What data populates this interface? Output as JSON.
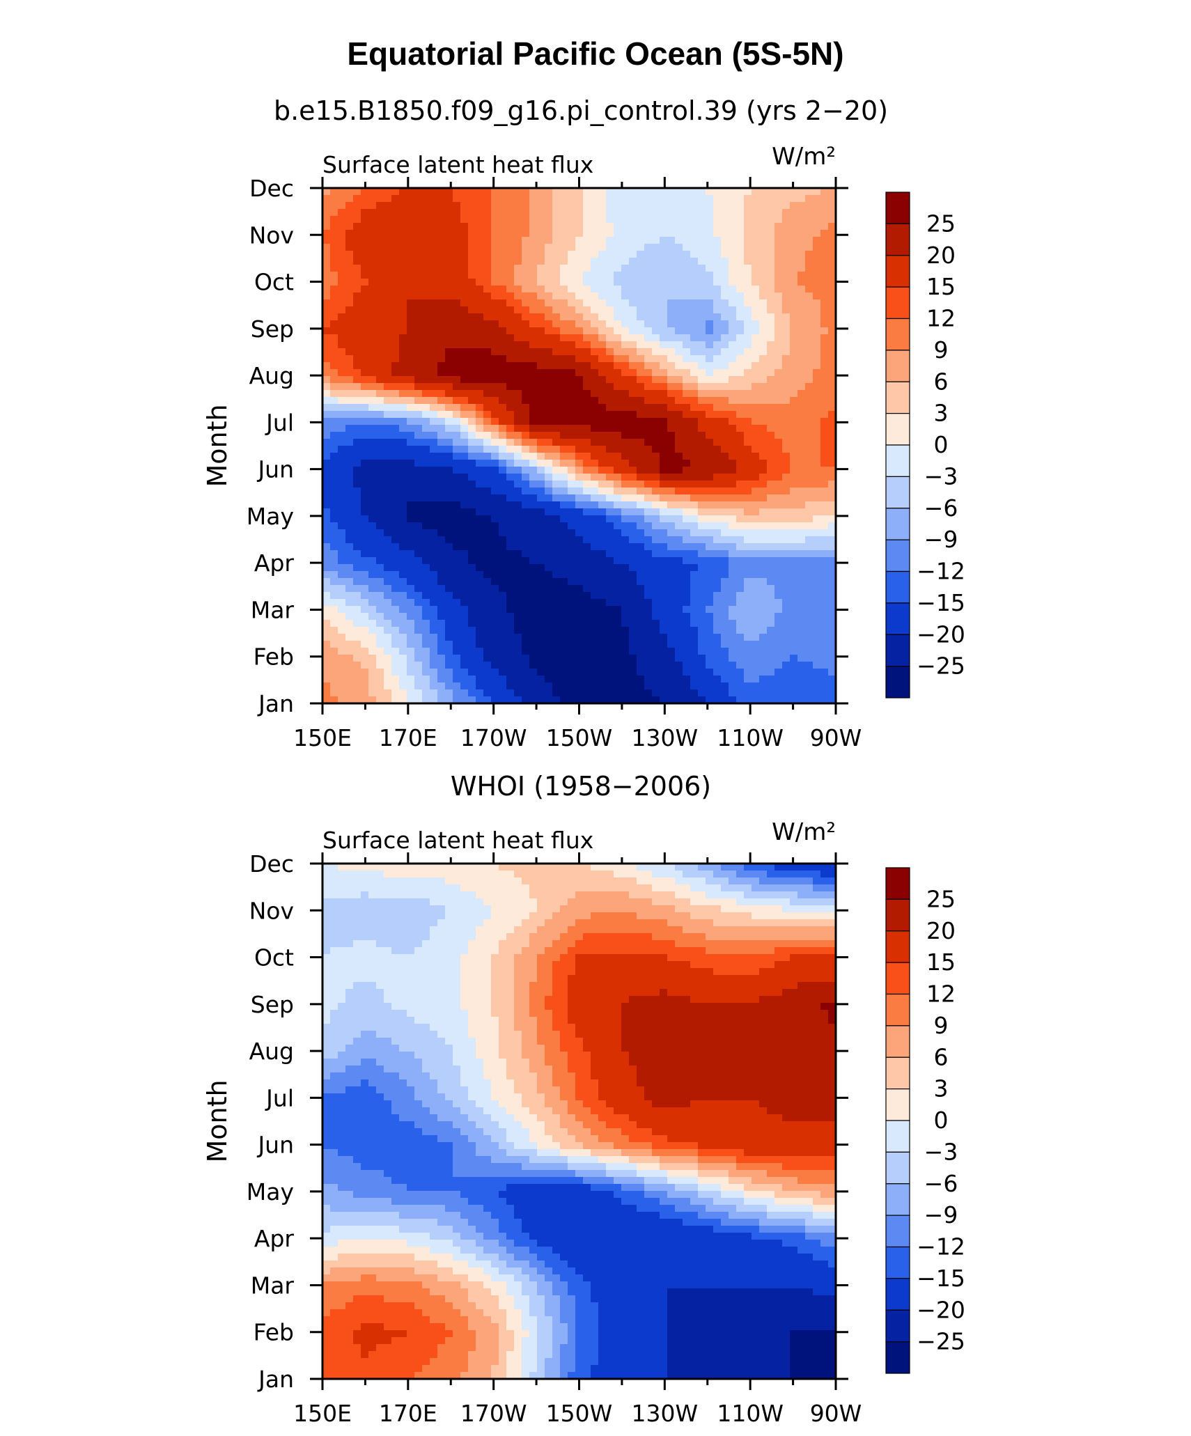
{
  "title": "Equatorial Pacific Ocean (5S-5N)",
  "colorbar": {
    "levels": [
      "25",
      "20",
      "15",
      "12",
      "9",
      "6",
      "3",
      "0",
      "−3",
      "−6",
      "−9",
      "−12",
      "−15",
      "−20",
      "−25"
    ],
    "colors": [
      "#8b0000",
      "#b31b00",
      "#d83000",
      "#f85018",
      "#fb7c43",
      "#fca47a",
      "#fdc7a8",
      "#feeadb",
      "#d9e9fd",
      "#b6cefb",
      "#8daef8",
      "#5c8af2",
      "#2a61ea",
      "#0b3acc",
      "#0522a3",
      "#00137d"
    ]
  },
  "chart_data": [
    {
      "type": "heatmap",
      "subtitle": "b.e15.B1850.f09_g16.pi_control.39 (yrs 2−20)",
      "left_label": "Surface latent heat flux",
      "units_label": "W/m²",
      "ylabel": "Month",
      "x_ticks": [
        "150E",
        "170E",
        "170W",
        "150W",
        "130W",
        "110W",
        "90W"
      ],
      "y_ticks": [
        "Jan",
        "Feb",
        "Mar",
        "Apr",
        "May",
        "Jun",
        "Jul",
        "Aug",
        "Sep",
        "Oct",
        "Nov",
        "Dec"
      ],
      "x_lon": [
        150,
        160,
        170,
        180,
        190,
        200,
        210,
        220,
        230,
        240,
        250,
        260,
        270
      ],
      "months": [
        "Jan",
        "Feb",
        "Mar",
        "Apr",
        "May",
        "Jun",
        "Jul",
        "Aug",
        "Sep",
        "Oct",
        "Nov",
        "Dec"
      ],
      "z": [
        [
          10,
          8,
          0,
          -8,
          -15,
          -23,
          -27,
          -27,
          -25,
          -20,
          -13,
          -15,
          -13
        ],
        [
          8,
          5,
          -4,
          -14,
          -22,
          -26,
          -27,
          -26,
          -22,
          -14,
          -10,
          -12,
          -11
        ],
        [
          2,
          -4,
          -10,
          -18,
          -24,
          -27,
          -27,
          -25,
          -18,
          -12,
          -6,
          -10,
          -12
        ],
        [
          -10,
          -14,
          -18,
          -24,
          -26,
          -25,
          -23,
          -20,
          -16,
          -15,
          -10,
          -10,
          -10
        ],
        [
          -14,
          -20,
          -26,
          -27,
          -25,
          -22,
          -18,
          -12,
          -5,
          2,
          5,
          5,
          2
        ],
        [
          -16,
          -22,
          -22,
          -20,
          -16,
          -5,
          8,
          18,
          26,
          25,
          18,
          12,
          12
        ],
        [
          -10,
          -12,
          -10,
          -3,
          12,
          26,
          27,
          28,
          26,
          18,
          12,
          10,
          13
        ],
        [
          10,
          16,
          22,
          27,
          28,
          28,
          26,
          16,
          8,
          0,
          4,
          8,
          10
        ],
        [
          15,
          18,
          20,
          24,
          22,
          15,
          9,
          0,
          -6,
          -10,
          -2,
          6,
          10
        ],
        [
          10,
          15,
          20,
          18,
          12,
          6,
          0,
          -4,
          -6,
          -4,
          3,
          9,
          10
        ],
        [
          12,
          18,
          20,
          17,
          12,
          8,
          3,
          -1,
          -3,
          -1,
          4,
          8,
          10
        ],
        [
          8,
          12,
          15,
          15,
          12,
          8,
          3,
          -2,
          -3,
          0,
          3,
          5,
          6
        ]
      ],
      "zlim": [
        -30,
        30
      ]
    },
    {
      "type": "heatmap",
      "subtitle": "WHOI (1958−2006)",
      "left_label": "Surface latent heat flux",
      "units_label": "W/m²",
      "ylabel": "Month",
      "x_ticks": [
        "150E",
        "170E",
        "170W",
        "150W",
        "130W",
        "110W",
        "90W"
      ],
      "y_ticks": [
        "Jan",
        "Feb",
        "Mar",
        "Apr",
        "May",
        "Jun",
        "Jul",
        "Aug",
        "Sep",
        "Oct",
        "Nov",
        "Dec"
      ],
      "x_lon": [
        150,
        160,
        170,
        180,
        190,
        200,
        210,
        220,
        230,
        240,
        250,
        260,
        270
      ],
      "months": [
        "Jan",
        "Feb",
        "Mar",
        "Apr",
        "May",
        "Jun",
        "Jul",
        "Aug",
        "Sep",
        "Oct",
        "Nov",
        "Dec"
      ],
      "z": [
        [
          12,
          14,
          12,
          10,
          6,
          -4,
          -14,
          -18,
          -20,
          -20,
          -22,
          -25,
          -26
        ],
        [
          13,
          16,
          15,
          12,
          7,
          -2,
          -12,
          -18,
          -20,
          -22,
          -24,
          -25,
          -25
        ],
        [
          9,
          11,
          10,
          7,
          2,
          -6,
          -14,
          -18,
          -20,
          -20,
          -20,
          -20,
          -18
        ],
        [
          -2,
          0,
          -1,
          -4,
          -10,
          -16,
          -20,
          -20,
          -20,
          -18,
          -16,
          -14,
          -10
        ],
        [
          -8,
          -10,
          -12,
          -12,
          -15,
          -18,
          -18,
          -14,
          -9,
          -4,
          2,
          6,
          8
        ],
        [
          -12,
          -14,
          -14,
          -12,
          -6,
          0,
          6,
          10,
          14,
          16,
          18,
          18,
          18
        ],
        [
          -12,
          -14,
          -10,
          -5,
          0,
          5,
          12,
          18,
          22,
          20,
          20,
          22,
          22
        ],
        [
          -4,
          -8,
          -6,
          -3,
          2,
          8,
          14,
          20,
          22,
          20,
          20,
          24,
          24
        ],
        [
          -2,
          -4,
          -2,
          -1,
          3,
          10,
          18,
          20,
          22,
          20,
          20,
          23,
          26
        ],
        [
          -3,
          -2,
          -3,
          -1,
          3,
          9,
          15,
          16,
          15,
          13,
          12,
          15,
          15
        ],
        [
          -4,
          -5,
          -5,
          -3,
          0,
          3,
          8,
          9,
          7,
          4,
          2,
          0,
          0
        ],
        [
          0,
          1,
          2,
          2,
          3,
          4,
          3,
          1,
          -3,
          -8,
          -14,
          -18,
          -20
        ]
      ],
      "zlim": [
        -30,
        30
      ]
    }
  ]
}
